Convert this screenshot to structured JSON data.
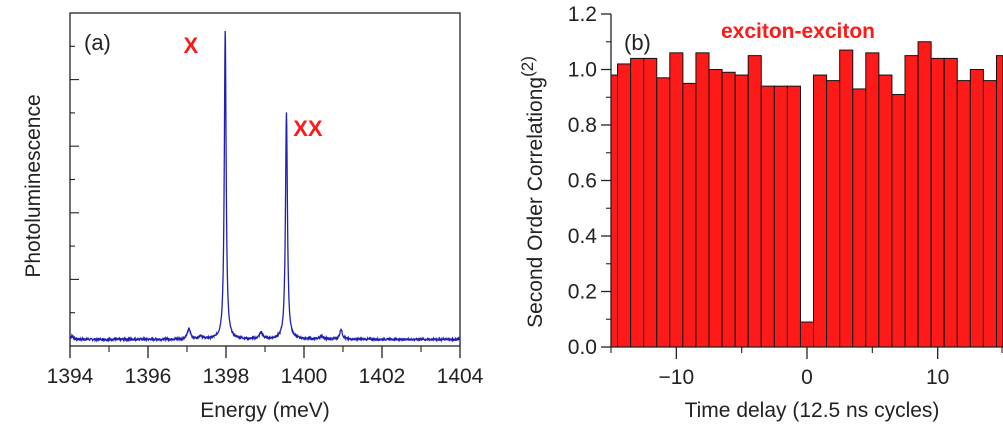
{
  "chart_data": [
    {
      "type": "line",
      "panel_label": "(a)",
      "xlabel": "Energy (meV)",
      "ylabel": "Photoluminescence",
      "xlim": [
        1394,
        1404
      ],
      "ylim": [
        0,
        1.0
      ],
      "xticks": [
        1394,
        1396,
        1398,
        1400,
        1402,
        1404
      ],
      "xtick_labels": [
        "1394",
        "1396",
        "1398",
        "1400",
        "1402",
        "1404"
      ],
      "y_tick_labels_shown": false,
      "line_color": "#1f1fb4",
      "background_level": 0.02,
      "peaks": [
        {
          "x": 1394.05,
          "height": 0.01,
          "width": 0.05
        },
        {
          "x": 1397.05,
          "height": 0.03,
          "width": 0.05
        },
        {
          "x": 1397.35,
          "height": 0.01,
          "width": 0.05
        },
        {
          "x": 1397.98,
          "height": 0.93,
          "width": 0.028
        },
        {
          "x": 1398.9,
          "height": 0.02,
          "width": 0.05
        },
        {
          "x": 1399.55,
          "height": 0.68,
          "width": 0.03
        },
        {
          "x": 1400.45,
          "height": 0.01,
          "width": 0.05
        },
        {
          "x": 1400.95,
          "height": 0.03,
          "width": 0.04
        }
      ],
      "annotations": [
        {
          "text": "X",
          "x": 1397.1,
          "y": 0.88,
          "color": "#ff1a1a"
        },
        {
          "text": "XX",
          "x": 1400.1,
          "y": 0.63,
          "color": "#ff1a1a"
        }
      ]
    },
    {
      "type": "bar",
      "panel_label": "(b)",
      "title": "exciton-exciton",
      "title_color": "#ff1a1a",
      "xlabel": "Time delay (12.5 ns cycles)",
      "ylabel": "Second Order Correlation",
      "ylabel_suffix": "g",
      "ylabel_superscript": "(2)",
      "xlim": [
        -15,
        15
      ],
      "ylim": [
        0,
        1.2
      ],
      "xticks": [
        -10,
        0,
        10
      ],
      "xtick_labels": [
        "−10",
        "0",
        "10"
      ],
      "yticks": [
        0.0,
        0.2,
        0.4,
        0.6,
        0.8,
        1.0,
        1.2
      ],
      "ytick_labels": [
        "0.0",
        "0.2",
        "0.4",
        "0.6",
        "0.8",
        "1.0",
        "1.2"
      ],
      "bar_color": "#ff1a1a",
      "x": [
        -15,
        -14,
        -13,
        -12,
        -11,
        -10,
        -9,
        -8,
        -7,
        -6,
        -5,
        -4,
        -3,
        -2,
        -1,
        0,
        1,
        2,
        3,
        4,
        5,
        6,
        7,
        8,
        9,
        10,
        11,
        12,
        13,
        14,
        15
      ],
      "values": [
        0.98,
        1.02,
        1.04,
        1.04,
        0.97,
        1.06,
        0.95,
        1.06,
        1.0,
        0.99,
        0.98,
        1.05,
        0.94,
        0.94,
        0.94,
        0.09,
        0.98,
        0.96,
        1.07,
        0.93,
        1.06,
        0.98,
        0.91,
        1.05,
        1.1,
        1.04,
        1.04,
        0.96,
        1.0,
        0.96,
        1.05
      ]
    }
  ]
}
